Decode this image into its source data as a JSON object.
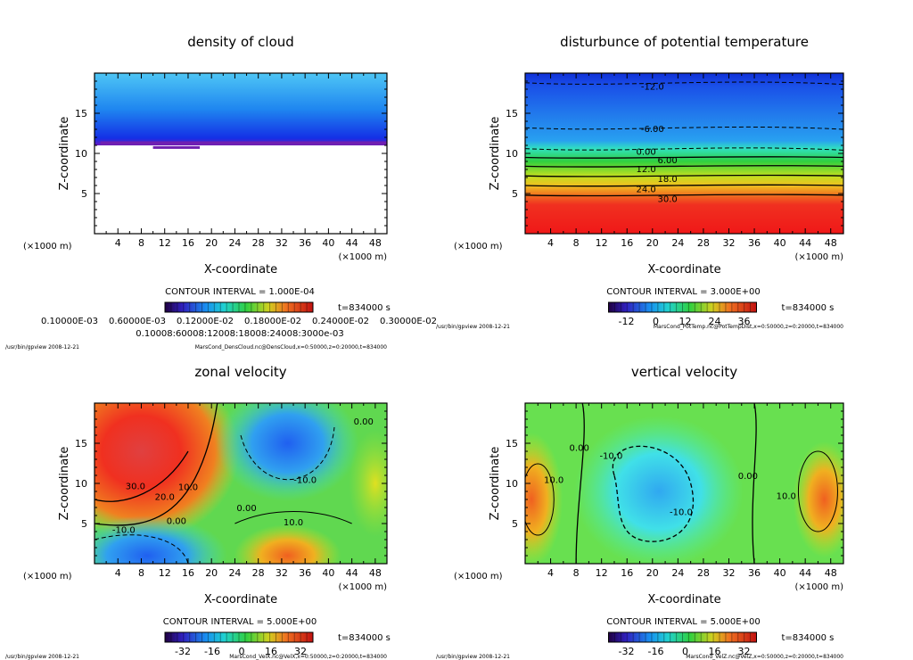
{
  "panels": [
    {
      "title": "density of cloud",
      "ylabel": "Z-coordinate",
      "xlabel": "X-coordinate",
      "yunit": "(×1000 m)",
      "xunit": "(×1000 m)",
      "xticks": [
        "4",
        "8",
        "12",
        "16",
        "20",
        "24",
        "28",
        "32",
        "36",
        "40",
        "44",
        "48"
      ],
      "yticks": [
        "5",
        "10",
        "15"
      ],
      "contour_interval": "CONTOUR INTERVAL = 1.000E-04",
      "time": "t=834000 s",
      "colorbar_labels": [
        "0.10000E-03",
        "0.60000E-03",
        "0.12000E-02",
        "0.18000E-02",
        "0.24000E-02",
        "0.30000E-02"
      ],
      "colorbar_overlap_text": "0.10008:60008:12008:18008:24008:3000e-03",
      "footer_left": "/usr/bin/gpview  2008-12-21",
      "footer_right": "MarsCond_DensCloud.nc@DensCloud,x=0:50000,z=0:20000,t=834000",
      "contour_labels": []
    },
    {
      "title": "disturbunce of potential temperature",
      "ylabel": "Z-coordinate",
      "xlabel": "X-coordinate",
      "yunit": "(×1000 m)",
      "xunit": "(×1000 m)",
      "xticks": [
        "4",
        "8",
        "12",
        "16",
        "20",
        "24",
        "28",
        "32",
        "36",
        "40",
        "44",
        "48"
      ],
      "yticks": [
        "5",
        "10",
        "15"
      ],
      "contour_interval": "CONTOUR INTERVAL = 3.000E+00",
      "time": "t=834000 s",
      "colorbar_labels": [
        "-12",
        "0",
        "12",
        "24",
        "36"
      ],
      "footer_left": "/usr/bin/gpview  2008-12-21",
      "footer_right": "MarsCond_PotTemp.nc@PotTempDist,x=0:50000,z=0:20000,t=834000",
      "contour_labels": [
        {
          "text": "-12.0",
          "x": 20,
          "z": 18.4
        },
        {
          "text": "-6.00",
          "x": 20,
          "z": 13.1
        },
        {
          "text": "0.00",
          "x": 19,
          "z": 10.3
        },
        {
          "text": "6.00",
          "x": 19,
          "z": 9.2
        },
        {
          "text": "12.0",
          "x": 19,
          "z": 8.1
        },
        {
          "text": "18.0",
          "x": 19,
          "z": 6.9
        },
        {
          "text": "24.0",
          "x": 19,
          "z": 5.6
        },
        {
          "text": "30.0",
          "x": 19,
          "z": 4.4
        }
      ]
    },
    {
      "title": "zonal velocity",
      "ylabel": "Z-coordinate",
      "xlabel": "X-coordinate",
      "yunit": "(×1000 m)",
      "xunit": "(×1000 m)",
      "xticks": [
        "4",
        "8",
        "12",
        "16",
        "20",
        "24",
        "28",
        "32",
        "36",
        "40",
        "44",
        "48"
      ],
      "yticks": [
        "5",
        "10",
        "15"
      ],
      "contour_interval": "CONTOUR INTERVAL = 5.000E+00",
      "time": "t=834000 s",
      "colorbar_labels": [
        "-32",
        "-16",
        "0",
        "16",
        "32"
      ],
      "footer_left": "/usr/bin/gpview  2008-12-21",
      "footer_right": "MarsCond_VelX.nc@VelX,x=0:50000,z=0:20000,t=834000",
      "contour_labels": [
        {
          "text": "30.0",
          "x": 7,
          "z": 9.7
        },
        {
          "text": "20.0",
          "x": 12,
          "z": 8.4
        },
        {
          "text": "10.0",
          "x": 16,
          "z": 9.6
        },
        {
          "text": "0.00",
          "x": 14,
          "z": 5.4
        },
        {
          "text": "-10.0",
          "x": 5,
          "z": 4.3
        },
        {
          "text": "0.00",
          "x": 26,
          "z": 7.0
        },
        {
          "text": "10.0",
          "x": 34,
          "z": 5.2
        },
        {
          "text": "-10.0",
          "x": 36,
          "z": 10.5
        },
        {
          "text": "0.00",
          "x": 46,
          "z": 17.8
        }
      ]
    },
    {
      "title": "vertical velocity",
      "ylabel": "Z-coordinate",
      "xlabel": "X-coordinate",
      "yunit": "(×1000 m)",
      "xunit": "(×1000 m)",
      "xticks": [
        "4",
        "8",
        "12",
        "16",
        "20",
        "24",
        "28",
        "32",
        "36",
        "40",
        "44",
        "48"
      ],
      "yticks": [
        "5",
        "10",
        "15"
      ],
      "contour_interval": "CONTOUR INTERVAL = 5.000E+00",
      "time": "t=834000 s",
      "colorbar_labels": [
        "-32",
        "-16",
        "0",
        "16",
        "32"
      ],
      "footer_left": "/usr/bin/gpview  2008-12-21",
      "footer_right": "MarsCond_VelZ.nc@VelZ,x=0:50000,z=0:20000,t=834000",
      "contour_labels": [
        {
          "text": "10.0",
          "x": 4.5,
          "z": 10.5
        },
        {
          "text": "0.00",
          "x": 8.5,
          "z": 14.5
        },
        {
          "text": "-10.0",
          "x": 13.5,
          "z": 13.5
        },
        {
          "text": "-10.0",
          "x": 24.5,
          "z": 6.5
        },
        {
          "text": "0.00",
          "x": 35,
          "z": 11
        },
        {
          "text": "10.0",
          "x": 41,
          "z": 8.5
        }
      ]
    }
  ],
  "chart_data": [
    {
      "type": "heatmap",
      "title": "density of cloud",
      "xlabel": "X-coordinate",
      "ylabel": "Z-coordinate",
      "xlim": [
        0,
        50
      ],
      "ylim": [
        0,
        20
      ],
      "units": "×1000 m",
      "note": "cloud layer between z≈11 and z≈20, max density near base"
    },
    {
      "type": "heatmap",
      "title": "disturbunce of potential temperature",
      "xlabel": "X-coordinate",
      "ylabel": "Z-coordinate",
      "xlim": [
        0,
        50
      ],
      "ylim": [
        0,
        20
      ],
      "colorbar_range": [
        -15,
        39
      ],
      "contour_levels": [
        -12,
        -6,
        0,
        6,
        12,
        18,
        24,
        30
      ]
    },
    {
      "type": "heatmap",
      "title": "zonal velocity",
      "xlabel": "X-coordinate",
      "ylabel": "Z-coordinate",
      "xlim": [
        0,
        50
      ],
      "ylim": [
        0,
        20
      ],
      "colorbar_range": [
        -35,
        35
      ],
      "contour_levels": [
        -10,
        0,
        10,
        20,
        30
      ]
    },
    {
      "type": "heatmap",
      "title": "vertical velocity",
      "xlabel": "X-coordinate",
      "ylabel": "Z-coordinate",
      "xlim": [
        0,
        50
      ],
      "ylim": [
        0,
        20
      ],
      "colorbar_range": [
        -35,
        35
      ],
      "contour_levels": [
        -10,
        0,
        10
      ]
    }
  ]
}
